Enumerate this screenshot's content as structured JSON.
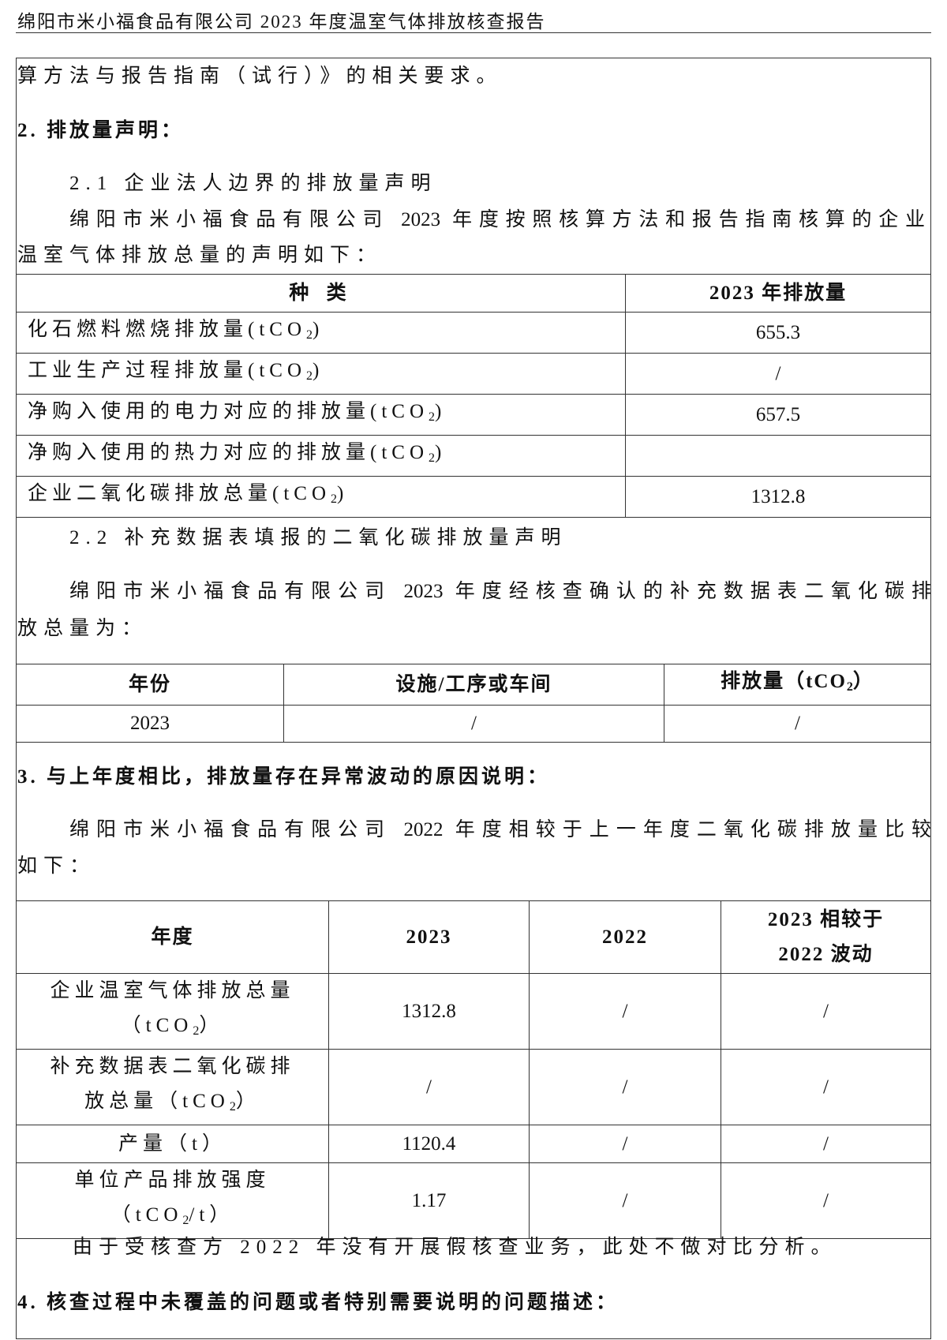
{
  "header": {
    "title": "绵阳市米小福食品有限公司 2023 年度温室气体排放核查报告"
  },
  "body": {
    "line_continuation": "算方法与报告指南（试行）》的相关要求。",
    "section2_title": "2. 排放量声明：",
    "section2_1_title": "2.1 企业法人边界的排放量声明",
    "section2_1_para_line1": "绵阳市米小福食品有限公司 2023 年度按照核算方法和报告指南核算的企业",
    "section2_1_para_line2": "温室气体排放总量的声明如下：",
    "table1": {
      "headers": [
        "种  类",
        "2023 年排放量"
      ],
      "rows": [
        {
          "label": "化石燃料燃烧排放量(tCO",
          "sub": "2",
          "suffix": ")",
          "value": "655.3"
        },
        {
          "label": "工业生产过程排放量(tCO",
          "sub": "2",
          "suffix": ")",
          "value": "/"
        },
        {
          "label": "净购入使用的电力对应的排放量(tCO",
          "sub": "2",
          "suffix": ")",
          "value": "657.5"
        },
        {
          "label": "净购入使用的热力对应的排放量(tCO",
          "sub": "2",
          "suffix": ")",
          "value": ""
        },
        {
          "label": "企业二氧化碳排放总量(tCO",
          "sub": "2",
          "suffix": ")",
          "value": "1312.8"
        }
      ]
    },
    "section2_2_title": "2.2 补充数据表填报的二氧化碳排放量声明",
    "section2_2_para_line1": "绵阳市米小福食品有限公司 2023 年度经核查确认的补充数据表二氧化碳排",
    "section2_2_para_line2": "放总量为：",
    "table2": {
      "headers": [
        "年份",
        "设施/工序或车间",
        "排放量（tCO",
        "2",
        "）"
      ],
      "row": [
        "2023",
        "/",
        "/"
      ]
    },
    "section3_title": "3. 与上年度相比，排放量存在异常波动的原因说明：",
    "section3_para_line1": "绵阳市米小福食品有限公司 2022 年度相较于上一年度二氧化碳排放量比较",
    "section3_para_line2": "如下：",
    "table3": {
      "headers": [
        "年度",
        "2023",
        "2022",
        "2023 相较于",
        "2022 波动"
      ],
      "rows": [
        {
          "l1": "企业温室气体排放总量",
          "l2a": "（tCO",
          "l2sub": "2",
          "l2b": "）",
          "values": [
            "1312.8",
            "/",
            "/"
          ]
        },
        {
          "l1": "补充数据表二氧化碳排",
          "l2a": "放总量（tCO",
          "l2sub": "2",
          "l2b": "）",
          "values": [
            "/",
            "/",
            "/"
          ]
        },
        {
          "l1": "产量（t）",
          "values": [
            "1120.4",
            "/",
            "/"
          ]
        },
        {
          "l1": "单位产品排放强度",
          "l2a": "（tCO",
          "l2sub": "2",
          "l2b": "/t）",
          "values": [
            "1.17",
            "/",
            "/"
          ]
        }
      ]
    },
    "note": "由于受核查方 2022 年没有开展假核查业务，此处不做对比分析。",
    "section4_title": "4. 核查过程中未覆盖的问题或者特别需要说明的问题描述："
  }
}
